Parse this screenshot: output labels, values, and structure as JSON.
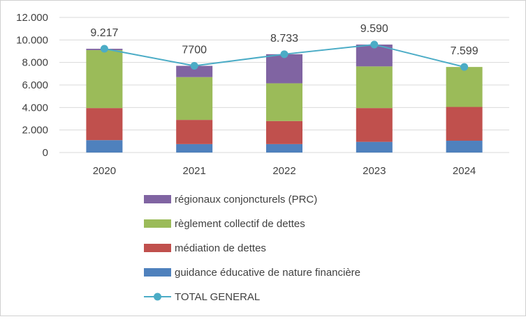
{
  "chart_data": {
    "type": "bar",
    "stacked": true,
    "categories": [
      "2020",
      "2021",
      "2022",
      "2023",
      "2024"
    ],
    "ylim": [
      0,
      12000
    ],
    "y_tick_values": [
      0,
      2000,
      4000,
      6000,
      8000,
      10000,
      12000
    ],
    "y_tick_labels": [
      "0",
      "2.000",
      "4.000",
      "6.000",
      "8.000",
      "10.000",
      "12.000"
    ],
    "grid": true,
    "legend_position": "bottom",
    "series": [
      {
        "name": "guidance éducative de nature financière",
        "color": "#4f81bd",
        "values": [
          1100,
          750,
          750,
          950,
          1050
        ]
      },
      {
        "name": "médiation de dettes",
        "color": "#c0504d",
        "values": [
          2850,
          2150,
          2050,
          3000,
          3000
        ]
      },
      {
        "name": "règlement collectif de dettes",
        "color": "#9bbb59",
        "values": [
          5150,
          3800,
          3350,
          3700,
          3550
        ]
      },
      {
        "name": "régionaux conjoncturels (PRC)",
        "color": "#8064a2",
        "values": [
          117,
          1000,
          2583,
          1940,
          0
        ]
      }
    ],
    "line": {
      "name": "TOTAL GENERAL",
      "color": "#4bacc6",
      "values": [
        9217,
        7700,
        8733,
        9590,
        7599
      ],
      "labels": [
        "9.217",
        "7700",
        "8.733",
        "9.590",
        "7.599"
      ]
    }
  }
}
